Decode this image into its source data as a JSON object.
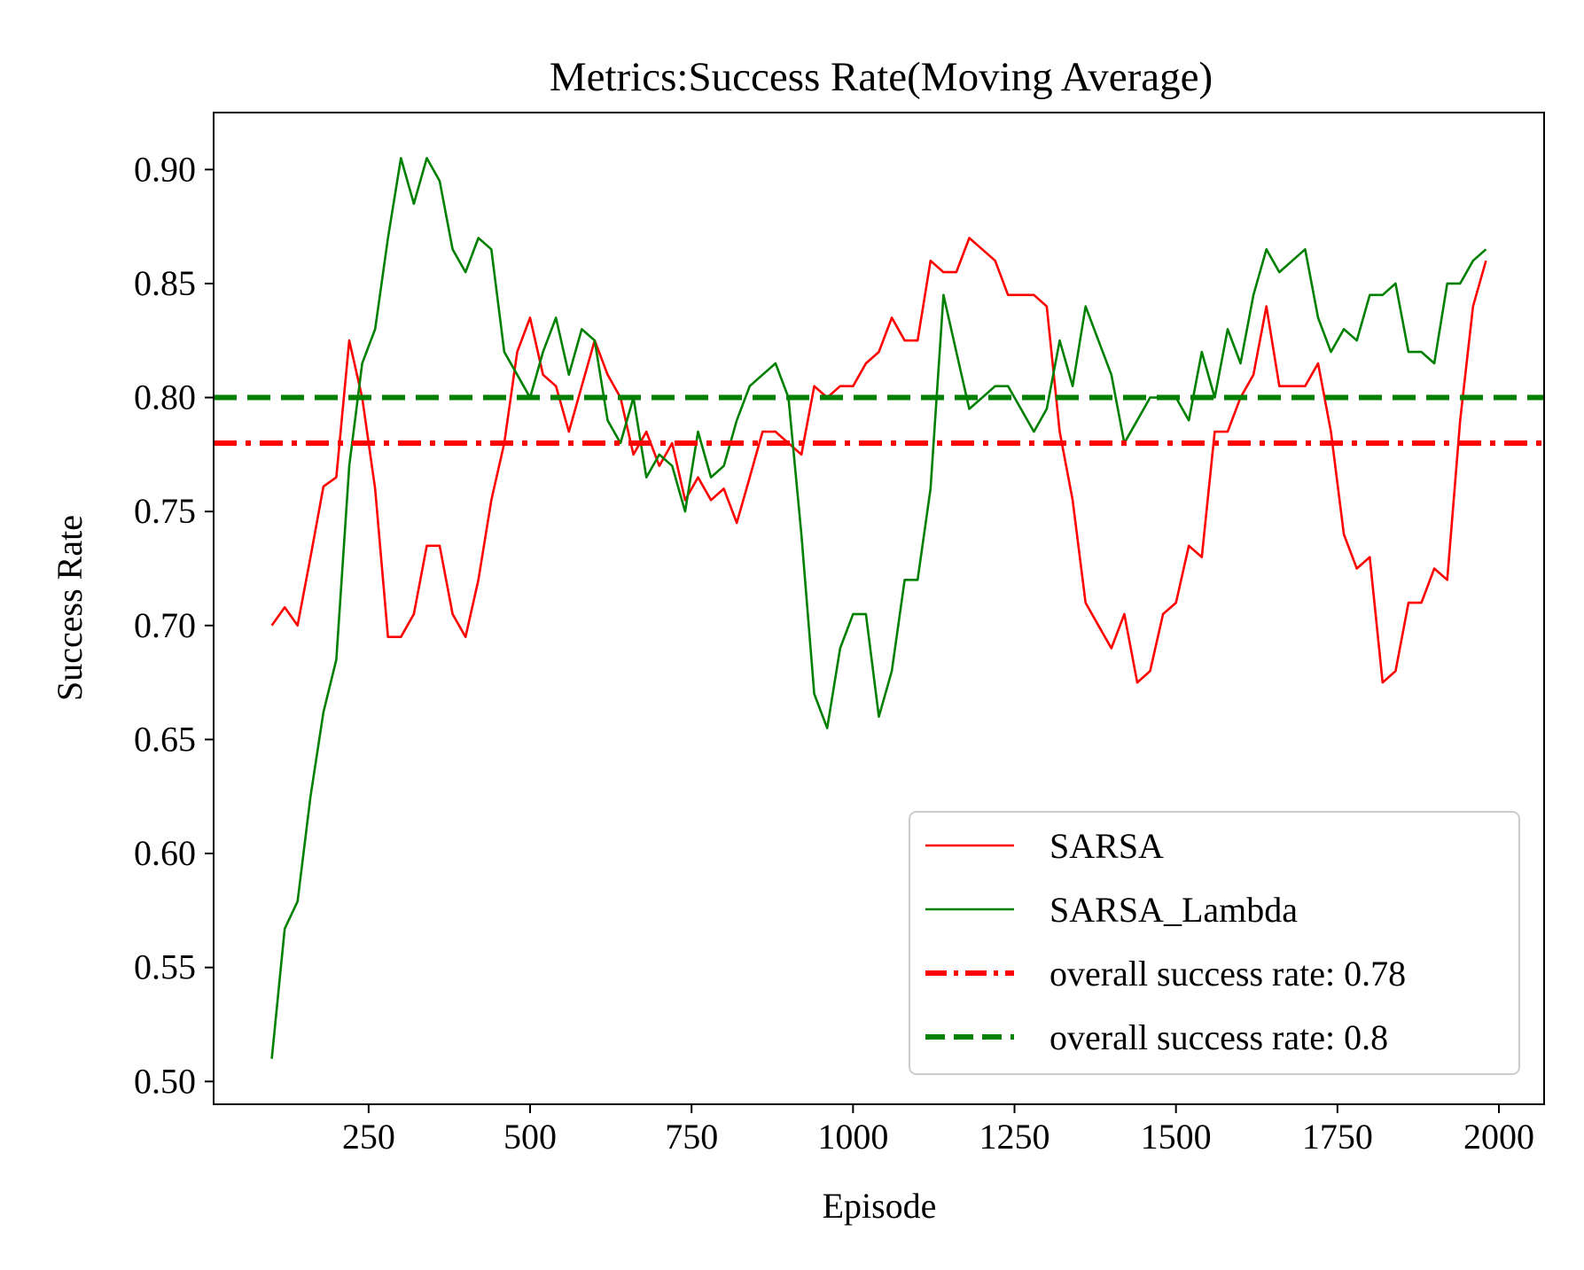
{
  "chart_data": {
    "type": "line",
    "title": "Metrics:Success Rate(Moving Average)",
    "xlabel": "Episode",
    "ylabel": "Success Rate",
    "xlim": [
      10,
      2070
    ],
    "ylim": [
      0.49,
      0.925
    ],
    "xticks": [
      250,
      500,
      750,
      1000,
      1250,
      1500,
      1750,
      2000
    ],
    "xtick_labels": [
      "250",
      "500",
      "750",
      "1000",
      "1250",
      "1500",
      "1750",
      "2000"
    ],
    "yticks": [
      0.5,
      0.55,
      0.6,
      0.65,
      0.7,
      0.75,
      0.8,
      0.85,
      0.9
    ],
    "ytick_labels": [
      "0.50",
      "0.55",
      "0.60",
      "0.65",
      "0.70",
      "0.75",
      "0.80",
      "0.85",
      "0.90"
    ],
    "grid": false,
    "legend_position": "lower-right",
    "x": [
      100,
      120,
      140,
      160,
      180,
      200,
      220,
      240,
      260,
      280,
      300,
      320,
      340,
      360,
      380,
      400,
      420,
      440,
      460,
      480,
      500,
      520,
      540,
      560,
      580,
      600,
      620,
      640,
      660,
      680,
      700,
      720,
      740,
      760,
      780,
      800,
      820,
      840,
      860,
      880,
      900,
      920,
      940,
      960,
      980,
      1000,
      1020,
      1040,
      1060,
      1080,
      1100,
      1120,
      1140,
      1160,
      1180,
      1200,
      1220,
      1240,
      1260,
      1280,
      1300,
      1320,
      1340,
      1360,
      1380,
      1400,
      1420,
      1440,
      1460,
      1480,
      1500,
      1520,
      1540,
      1560,
      1580,
      1600,
      1620,
      1640,
      1660,
      1680,
      1700,
      1720,
      1740,
      1760,
      1780,
      1800,
      1820,
      1840,
      1860,
      1880,
      1900,
      1920,
      1940,
      1960,
      1980
    ],
    "series": [
      {
        "name": "SARSA",
        "color": "#ff0000",
        "style": "solid",
        "values": [
          0.7,
          0.708,
          0.7,
          0.73,
          0.761,
          0.765,
          0.825,
          0.8,
          0.76,
          0.695,
          0.695,
          0.705,
          0.735,
          0.735,
          0.705,
          0.695,
          0.72,
          0.755,
          0.78,
          0.82,
          0.835,
          0.81,
          0.805,
          0.785,
          0.805,
          0.825,
          0.81,
          0.8,
          0.775,
          0.785,
          0.77,
          0.78,
          0.755,
          0.765,
          0.755,
          0.76,
          0.745,
          0.765,
          0.785,
          0.785,
          0.78,
          0.775,
          0.805,
          0.8,
          0.805,
          0.805,
          0.815,
          0.82,
          0.835,
          0.825,
          0.825,
          0.86,
          0.855,
          0.855,
          0.87,
          0.865,
          0.86,
          0.845,
          0.845,
          0.845,
          0.84,
          0.785,
          0.755,
          0.71,
          0.7,
          0.69,
          0.705,
          0.675,
          0.68,
          0.705,
          0.71,
          0.735,
          0.73,
          0.785,
          0.785,
          0.8,
          0.81,
          0.84,
          0.805,
          0.805,
          0.805,
          0.815,
          0.785,
          0.74,
          0.725,
          0.73,
          0.675,
          0.68,
          0.71,
          0.71,
          0.725,
          0.72,
          0.79,
          0.84,
          0.86
        ]
      },
      {
        "name": "SARSA_Lambda",
        "color": "#008000",
        "style": "solid",
        "values": [
          0.51,
          0.567,
          0.579,
          0.625,
          0.662,
          0.685,
          0.77,
          0.815,
          0.83,
          0.87,
          0.905,
          0.885,
          0.905,
          0.895,
          0.865,
          0.855,
          0.87,
          0.865,
          0.82,
          0.81,
          0.8,
          0.82,
          0.835,
          0.81,
          0.83,
          0.825,
          0.79,
          0.78,
          0.8,
          0.765,
          0.775,
          0.77,
          0.75,
          0.785,
          0.765,
          0.77,
          0.79,
          0.805,
          0.81,
          0.815,
          0.8,
          0.74,
          0.67,
          0.655,
          0.69,
          0.705,
          0.705,
          0.66,
          0.68,
          0.72,
          0.72,
          0.76,
          0.845,
          0.82,
          0.795,
          0.8,
          0.805,
          0.805,
          0.795,
          0.785,
          0.795,
          0.825,
          0.805,
          0.84,
          0.825,
          0.81,
          0.78,
          0.79,
          0.8,
          0.8,
          0.8,
          0.79,
          0.82,
          0.8,
          0.83,
          0.815,
          0.845,
          0.865,
          0.855,
          0.86,
          0.865,
          0.835,
          0.82,
          0.83,
          0.825,
          0.845,
          0.845,
          0.85,
          0.82,
          0.82,
          0.815,
          0.85,
          0.85,
          0.86,
          0.865
        ]
      },
      {
        "name": "overall success rate: 0.78",
        "color": "#ff0000",
        "style": "dashdot",
        "type": "hline",
        "y": 0.78
      },
      {
        "name": "overall success rate: 0.8",
        "color": "#008000",
        "style": "dashed",
        "type": "hline",
        "y": 0.8
      }
    ]
  }
}
